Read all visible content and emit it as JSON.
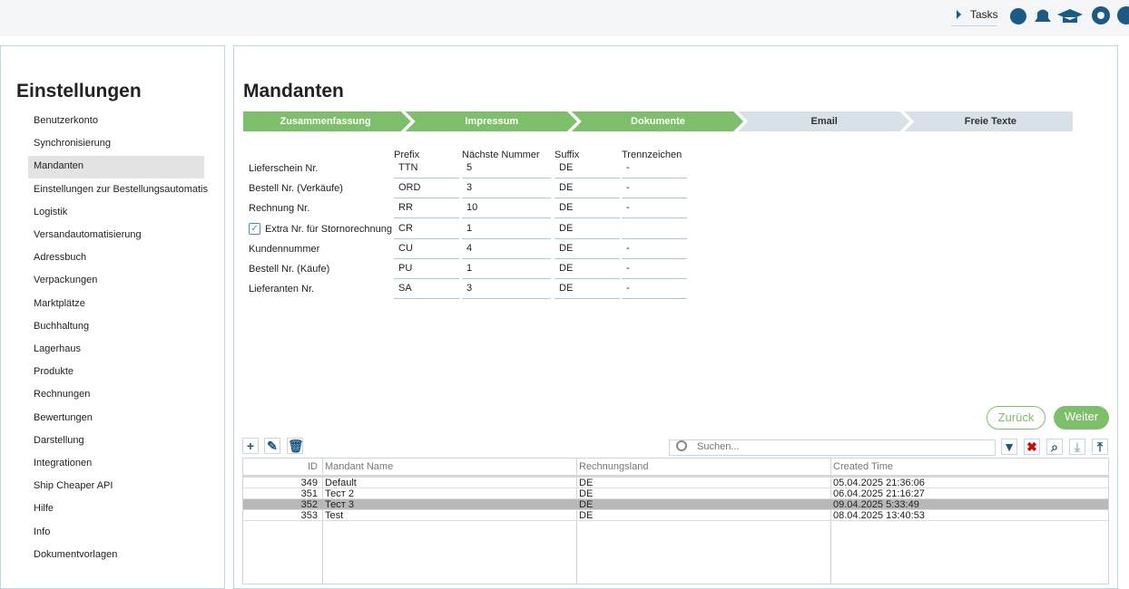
{
  "topbar": {
    "tasks": "Tasks"
  },
  "sidebar": {
    "title": "Einstellungen",
    "selected": 2,
    "items": [
      "Benutzerkonto",
      "Synchronisierung",
      "Mandanten",
      "Einstellungen zur Bestellungsautomatis",
      "Logistik",
      "Versandautomatisierung",
      "Adressbuch",
      "Verpackungen",
      "Marktplätze",
      "Buchhaltung",
      "Lagerhaus",
      "Produkte",
      "Rechnungen",
      "Bewertungen",
      "Darstellung",
      "Integrationen",
      "Ship Cheaper API",
      "Hilfe",
      "Info",
      "Dokumentvorlagen"
    ]
  },
  "main": {
    "title": "Mandanten",
    "steps": [
      {
        "label": "Zusammenfassung",
        "done": true
      },
      {
        "label": "Impressum",
        "done": true
      },
      {
        "label": "Dokumente",
        "done": true
      },
      {
        "label": "Email",
        "done": false
      },
      {
        "label": "Freie Texte",
        "done": false
      }
    ],
    "form": {
      "headers": [
        "Prefix",
        "Nächste Nummer",
        "Suffix",
        "Trennzeichen"
      ],
      "rows": [
        {
          "label": "Lieferschein Nr.",
          "prefix": "TTN",
          "next": 5,
          "suffix": "DE",
          "sep": "-"
        },
        {
          "label": "Bestell Nr. (Verkäufe)",
          "prefix": "ORD",
          "next": 3,
          "suffix": "DE",
          "sep": "-"
        },
        {
          "label": "Rechnung Nr.",
          "prefix": "RR",
          "next": 10,
          "suffix": "DE",
          "sep": "-"
        },
        {
          "label": "Extra Nr. für Stornorechnung",
          "checked": true,
          "prefix": "CR",
          "next": 1,
          "suffix": "DE"
        },
        {
          "label": "Kundennummer",
          "prefix": "CU",
          "next": 4,
          "suffix": "DE",
          "sep": "-"
        },
        {
          "label": "Bestell Nr. (Käufe)",
          "prefix": "PU",
          "next": 1,
          "suffix": "DE",
          "sep": "-"
        },
        {
          "label": "Lieferanten Nr.",
          "prefix": "SA",
          "next": 3,
          "suffix": "DE",
          "sep": "-"
        }
      ]
    },
    "buttons": {
      "back": "Zurück",
      "next": "Weiter"
    },
    "search_placeholder": "Suchen...",
    "grid": {
      "columns": [
        "ID",
        "Mandant Name",
        "Rechnungsland",
        "Created Time"
      ],
      "selected_row": 2,
      "rows": [
        [
          349,
          "Default",
          "DE",
          "05.04.2025 21:36:06"
        ],
        [
          351,
          "Тест 2",
          "DE",
          "06.04.2025 21:16:27"
        ],
        [
          352,
          "Тест 3",
          "DE",
          "09.04.2025 5:33:49"
        ],
        [
          353,
          "Test",
          "DE",
          "08.04.2025 13:40:53"
        ]
      ]
    }
  }
}
